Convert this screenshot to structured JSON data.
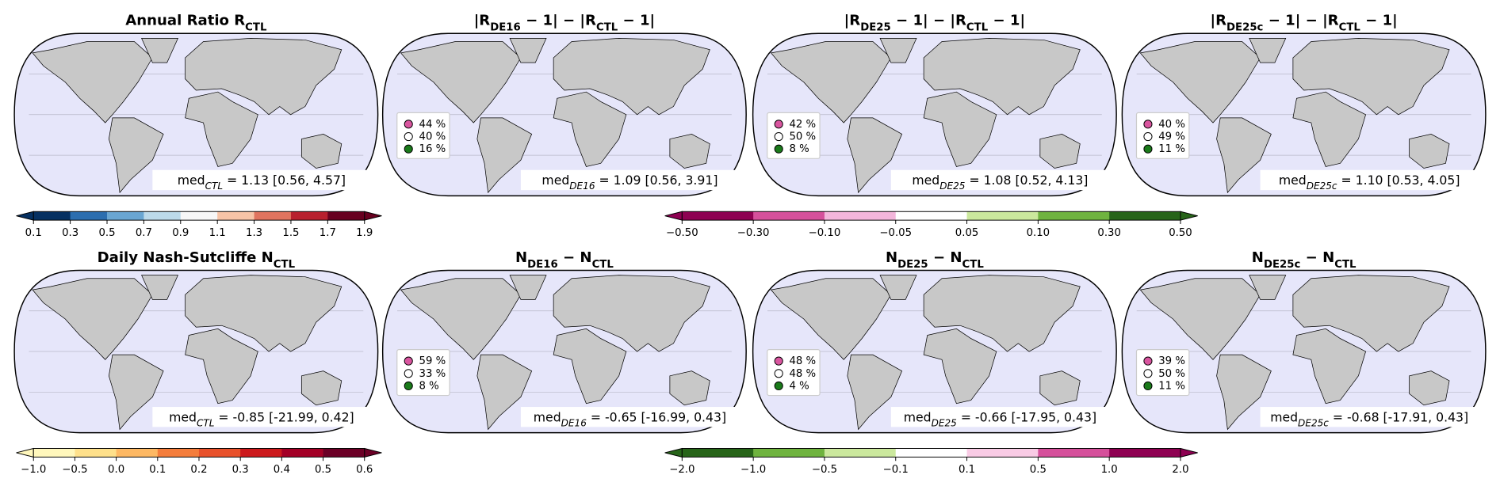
{
  "panels": [
    {
      "title": [
        {
          "text": "Annual Ratio R"
        },
        {
          "text": "CTL",
          "sub": true
        }
      ],
      "median": [
        {
          "text": "med"
        },
        {
          "text": "CTL",
          "sub": true
        },
        {
          "text": " = 1.13 [0.56, 4.57]"
        }
      ]
    },
    {
      "title": [
        {
          "text": "|R"
        },
        {
          "text": "DE16",
          "sub": true
        },
        {
          "text": " − 1| − |R"
        },
        {
          "text": "CTL",
          "sub": true
        },
        {
          "text": " − 1|"
        }
      ],
      "legend": [
        {
          "label": "44 %",
          "color": "#d9559f"
        },
        {
          "label": "40 %",
          "color": "#ffffff"
        },
        {
          "label": "16 %",
          "color": "#1a7a1a"
        }
      ],
      "median": [
        {
          "text": "med"
        },
        {
          "text": "DE16",
          "sub": true
        },
        {
          "text": " = 1.09 [0.56, 3.91]"
        }
      ]
    },
    {
      "title": [
        {
          "text": "|R"
        },
        {
          "text": "DE25",
          "sub": true
        },
        {
          "text": " − 1| − |R"
        },
        {
          "text": "CTL",
          "sub": true
        },
        {
          "text": " − 1|"
        }
      ],
      "legend": [
        {
          "label": "42 %",
          "color": "#d9559f"
        },
        {
          "label": "50 %",
          "color": "#ffffff"
        },
        {
          "label": "8 %",
          "color": "#1a7a1a"
        }
      ],
      "median": [
        {
          "text": "med"
        },
        {
          "text": "DE25",
          "sub": true
        },
        {
          "text": " = 1.08 [0.52, 4.13]"
        }
      ]
    },
    {
      "title": [
        {
          "text": "|R"
        },
        {
          "text": "DE25c",
          "sub": true
        },
        {
          "text": " − 1| − |R"
        },
        {
          "text": "CTL",
          "sub": true
        },
        {
          "text": " − 1|"
        }
      ],
      "legend": [
        {
          "label": "40 %",
          "color": "#d9559f"
        },
        {
          "label": "49 %",
          "color": "#ffffff"
        },
        {
          "label": "11 %",
          "color": "#1a7a1a"
        }
      ],
      "median": [
        {
          "text": "med"
        },
        {
          "text": "DE25c",
          "sub": true
        },
        {
          "text": " = 1.10 [0.53, 4.05]"
        }
      ]
    },
    {
      "title": [
        {
          "text": "Daily Nash-Sutcliffe N"
        },
        {
          "text": "CTL",
          "sub": true
        }
      ],
      "median": [
        {
          "text": "med"
        },
        {
          "text": "CTL",
          "sub": true
        },
        {
          "text": " = -0.85 [-21.99, 0.42]"
        }
      ]
    },
    {
      "title": [
        {
          "text": "N"
        },
        {
          "text": "DE16",
          "sub": true
        },
        {
          "text": " − N"
        },
        {
          "text": "CTL",
          "sub": true
        }
      ],
      "legend": [
        {
          "label": "59 %",
          "color": "#d9559f"
        },
        {
          "label": "33 %",
          "color": "#ffffff"
        },
        {
          "label": "8 %",
          "color": "#1a7a1a"
        }
      ],
      "median": [
        {
          "text": "med"
        },
        {
          "text": "DE16",
          "sub": true
        },
        {
          "text": " = -0.65 [-16.99, 0.43]"
        }
      ]
    },
    {
      "title": [
        {
          "text": "N"
        },
        {
          "text": "DE25",
          "sub": true
        },
        {
          "text": " − N"
        },
        {
          "text": "CTL",
          "sub": true
        }
      ],
      "legend": [
        {
          "label": "48 %",
          "color": "#d9559f"
        },
        {
          "label": "48 %",
          "color": "#ffffff"
        },
        {
          "label": "4 %",
          "color": "#1a7a1a"
        }
      ],
      "median": [
        {
          "text": "med"
        },
        {
          "text": "DE25",
          "sub": true
        },
        {
          "text": " = -0.66 [-17.95, 0.43]"
        }
      ]
    },
    {
      "title": [
        {
          "text": "N"
        },
        {
          "text": "DE25c",
          "sub": true
        },
        {
          "text": " − N"
        },
        {
          "text": "CTL",
          "sub": true
        }
      ],
      "legend": [
        {
          "label": "39 %",
          "color": "#d9559f"
        },
        {
          "label": "50 %",
          "color": "#ffffff"
        },
        {
          "label": "11 %",
          "color": "#1a7a1a"
        }
      ],
      "median": [
        {
          "text": "med"
        },
        {
          "text": "DE25c",
          "sub": true
        },
        {
          "text": " = -0.68 [-17.91, 0.43]"
        }
      ]
    }
  ],
  "colorbars": [
    {
      "colors": [
        "#053061",
        "#2c6eaf",
        "#6aa6d2",
        "#bcdaea",
        "#f7f7f7",
        "#f7c4a7",
        "#e0745f",
        "#b8202e",
        "#67001f"
      ],
      "ticks": [
        0.1,
        0.3,
        0.5,
        0.7,
        0.9,
        1.1,
        1.3,
        1.5,
        1.7,
        1.9
      ]
    },
    {
      "colors": [
        "#8e0152",
        "#d5509b",
        "#f3b6db",
        "#ffffff",
        "#cbe89d",
        "#6fb33f",
        "#276419"
      ],
      "ticks": [
        {
          "value": -0.5,
          "label": "−0.50"
        },
        {
          "value": -0.3,
          "label": "−0.30"
        },
        {
          "value": -0.1,
          "label": "−0.10"
        },
        {
          "value": -0.05,
          "label": "−0.05"
        },
        0.05,
        {
          "value": 0.1,
          "label": "0.10"
        },
        {
          "value": 0.3,
          "label": "0.30"
        },
        {
          "value": 0.5,
          "label": "0.50"
        }
      ]
    },
    {
      "colors": [
        "#fff7bc",
        "#fee08b",
        "#fdb863",
        "#f47d3c",
        "#e8512b",
        "#cc1a1d",
        "#a30026",
        "#6b0026"
      ],
      "ticks": [
        {
          "value": -1,
          "label": "−1.0"
        },
        {
          "value": -0.5,
          "label": "−0.5"
        },
        {
          "value": 0,
          "label": "0.0"
        },
        0.1,
        0.2,
        0.3,
        0.4,
        0.5,
        0.6
      ]
    },
    {
      "colors": [
        "#276419",
        "#6fb33f",
        "#cbe89d",
        "#ffffff",
        "#f9cbe5",
        "#d5509b",
        "#8e0152"
      ],
      "ticks": [
        {
          "value": -2,
          "label": "−2.0"
        },
        {
          "value": -1,
          "label": "−1.0"
        },
        {
          "value": -0.5,
          "label": "−0.5"
        },
        {
          "value": -0.1,
          "label": "−0.1"
        },
        0.1,
        0.5,
        {
          "value": 1,
          "label": "1.0"
        },
        {
          "value": 2,
          "label": "2.0"
        }
      ]
    }
  ]
}
